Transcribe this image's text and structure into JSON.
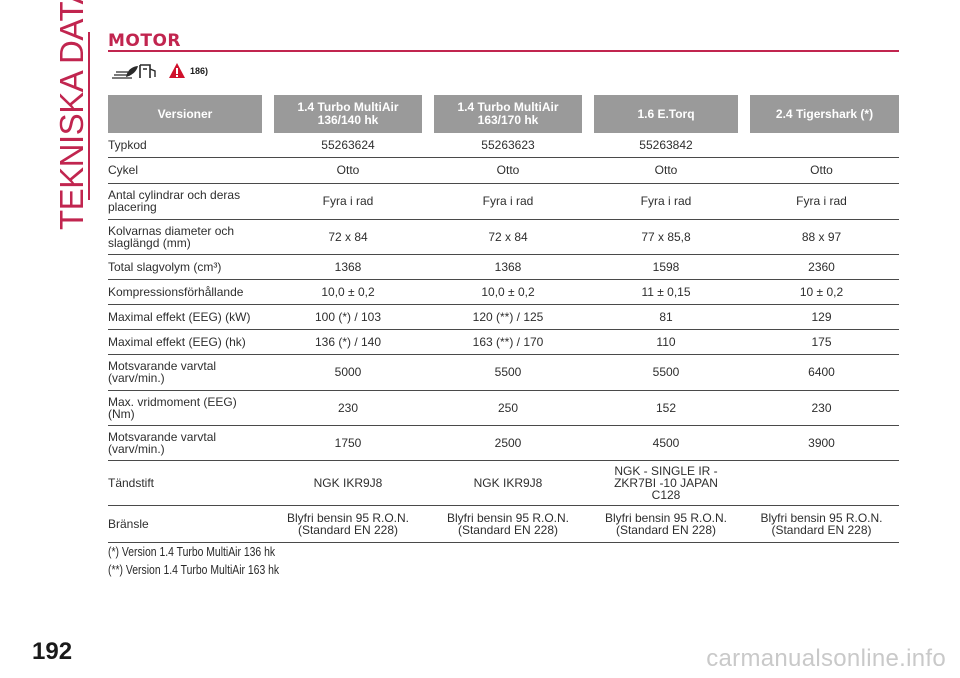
{
  "side_title": "TEKNISKA DATA",
  "section_title": "MOTOR",
  "reference": "186)",
  "table": {
    "headers": [
      "Versioner",
      "1.4 Turbo MultiAir 136/140 hk",
      "1.4 Turbo MultiAir 163/170 hk",
      "1.6 E.Torq",
      "2.4 Tigershark (*)"
    ],
    "rows": [
      {
        "label": "Typkod",
        "values": [
          "55263624",
          "55263623",
          "55263842",
          ""
        ]
      },
      {
        "label": "Cykel",
        "values": [
          "Otto",
          "Otto",
          "Otto",
          "Otto"
        ]
      },
      {
        "label": "Antal cylindrar och deras placering",
        "values": [
          "Fyra i rad",
          "Fyra i rad",
          "Fyra i rad",
          "Fyra i rad"
        ]
      },
      {
        "label": "Kolvarnas diameter och slaglängd (mm)",
        "values": [
          "72 x 84",
          "72 x 84",
          "77 x 85,8",
          "88 x 97"
        ]
      },
      {
        "label": "Total slagvolym (cm³)",
        "values": [
          "1368",
          "1368",
          "1598",
          "2360"
        ]
      },
      {
        "label": "Kompressionsförhållande",
        "values": [
          "10,0 ± 0,2",
          "10,0 ± 0,2",
          "11 ± 0,15",
          "10 ± 0,2"
        ]
      },
      {
        "label": "Maximal effekt (EEG) (kW)",
        "values": [
          "100 (*) / 103",
          "120 (**) / 125",
          "81",
          "129"
        ]
      },
      {
        "label": "Maximal effekt (EEG) (hk)",
        "values": [
          "136 (*) / 140",
          "163 (**) / 170",
          "110",
          "175"
        ]
      },
      {
        "label": "Motsvarande varvtal (varv/min.)",
        "values": [
          "5000",
          "5500",
          "5500",
          "6400"
        ]
      },
      {
        "label": "Max. vridmoment (EEG) (Nm)",
        "values": [
          "230",
          "250",
          "152",
          "230"
        ]
      },
      {
        "label": "Motsvarande varvtal (varv/min.)",
        "values": [
          "1750",
          "2500",
          "4500",
          "3900"
        ]
      },
      {
        "label": "Tändstift",
        "values": [
          "NGK IKR9J8",
          "NGK IKR9J8",
          "NGK - SINGLE IR - ZKR7BI -10 JAPAN C128",
          ""
        ]
      },
      {
        "label": "Bränsle",
        "values": [
          "Blyfri bensin 95 R.O.N. (Standard EN 228)",
          "Blyfri bensin 95 R.O.N. (Standard EN 228)",
          "Blyfri bensin 95 R.O.N. (Standard EN 228)",
          "Blyfri bensin 95 R.O.N. (Standard EN 228)"
        ]
      }
    ]
  },
  "notes": [
    "(*) Version 1.4 Turbo MultiAir 136 hk",
    "(**) Version 1.4 Turbo MultiAir 163 hk"
  ],
  "page_number": "192",
  "watermark": "carmanualsonline.info",
  "icons": {
    "eco": "eco-fuel-icon",
    "warning": "warning-triangle-icon"
  },
  "colors": {
    "accent": "#c1254f",
    "header_bg": "#9a9a9a",
    "warning": "#d0112b"
  }
}
